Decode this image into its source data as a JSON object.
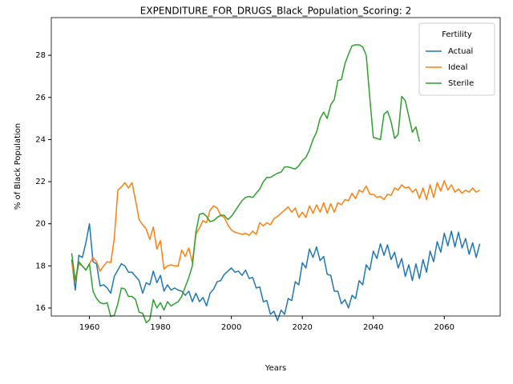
{
  "chart_data": {
    "type": "line",
    "title": "EXPENDITURE_FOR_DRUGS_Black_Population_Scoring: 2",
    "xlabel": "Years",
    "ylabel": "% of Black Population",
    "legend_title": "Fertility",
    "legend": "upper right",
    "x": [
      1955,
      1956,
      1957,
      1958,
      1959,
      1960,
      1961,
      1962,
      1963,
      1964,
      1965,
      1966,
      1967,
      1968,
      1969,
      1970,
      1971,
      1972,
      1973,
      1974,
      1975,
      1976,
      1977,
      1978,
      1979,
      1980,
      1981,
      1982,
      1983,
      1984,
      1985,
      1986,
      1987,
      1988,
      1989,
      1990,
      1991,
      1992,
      1993,
      1994,
      1995,
      1996,
      1997,
      1998,
      1999,
      2000,
      2001,
      2002,
      2003,
      2004,
      2005,
      2006,
      2007,
      2008,
      2009,
      2010,
      2011,
      2012,
      2013,
      2014,
      2015,
      2016,
      2017,
      2018,
      2019,
      2020,
      2021,
      2022,
      2023,
      2024,
      2025,
      2026,
      2027,
      2028,
      2029,
      2030,
      2031,
      2032,
      2033,
      2034,
      2035,
      2036,
      2037,
      2038,
      2039,
      2040,
      2041,
      2042,
      2043,
      2044,
      2045,
      2046,
      2047,
      2048,
      2049,
      2050,
      2051,
      2052,
      2053,
      2054,
      2055,
      2056,
      2057,
      2058,
      2059,
      2060,
      2061,
      2062,
      2063,
      2064,
      2065,
      2066,
      2067,
      2068,
      2069,
      2070
    ],
    "series": [
      {
        "name": "Actual",
        "color": "#1f77b4",
        "values": [
          18.3,
          16.85,
          18.5,
          18.4,
          19.1,
          20.0,
          18.2,
          18.1,
          17.05,
          17.1,
          16.95,
          16.7,
          17.5,
          17.8,
          18.1,
          18.0,
          17.7,
          17.7,
          17.5,
          17.3,
          16.7,
          17.2,
          17.1,
          17.75,
          17.2,
          17.55,
          16.8,
          17.1,
          16.85,
          16.95,
          16.85,
          16.8,
          16.6,
          16.8,
          16.3,
          16.7,
          16.3,
          16.5,
          16.1,
          16.7,
          16.9,
          17.25,
          17.3,
          17.6,
          17.75,
          17.9,
          17.7,
          17.75,
          17.55,
          17.8,
          17.4,
          17.45,
          16.95,
          17.0,
          16.3,
          16.35,
          15.7,
          15.85,
          15.4,
          15.9,
          15.7,
          16.45,
          16.35,
          17.25,
          17.1,
          18.15,
          17.9,
          18.8,
          18.4,
          18.9,
          18.25,
          18.45,
          17.6,
          17.55,
          16.8,
          16.8,
          16.2,
          16.4,
          16.0,
          16.6,
          16.45,
          17.3,
          17.1,
          18.05,
          17.8,
          18.7,
          18.35,
          19.05,
          18.5,
          19.0,
          18.3,
          18.65,
          17.9,
          18.35,
          17.5,
          18.05,
          17.3,
          18.1,
          17.4,
          18.3,
          17.7,
          18.7,
          18.2,
          19.15,
          18.65,
          19.55,
          18.95,
          19.65,
          18.9,
          19.6,
          18.85,
          19.3,
          18.55,
          19.1,
          18.4,
          19.05
        ]
      },
      {
        "name": "Ideal",
        "color": "#ff7f0e",
        "values": [
          18.2,
          17.2,
          18.1,
          18.0,
          17.8,
          18.1,
          18.4,
          18.2,
          17.75,
          18.0,
          18.2,
          18.15,
          19.3,
          21.6,
          21.75,
          21.95,
          21.7,
          21.95,
          21.1,
          20.2,
          19.95,
          19.75,
          19.25,
          19.85,
          18.8,
          19.2,
          17.85,
          18.0,
          18.05,
          18.0,
          18.0,
          18.75,
          18.45,
          18.85,
          18.15,
          19.5,
          19.8,
          20.15,
          20.05,
          20.65,
          20.85,
          20.75,
          20.4,
          20.3,
          19.95,
          19.7,
          19.6,
          19.55,
          19.5,
          19.55,
          19.45,
          19.65,
          19.5,
          20.05,
          19.9,
          20.05,
          19.95,
          20.25,
          20.35,
          20.5,
          20.65,
          20.8,
          20.55,
          20.75,
          20.3,
          20.55,
          20.3,
          20.85,
          20.5,
          20.9,
          20.55,
          21.0,
          20.5,
          20.95,
          20.55,
          21.0,
          20.9,
          21.15,
          21.1,
          21.45,
          21.2,
          21.6,
          21.5,
          21.8,
          21.4,
          21.4,
          21.25,
          21.3,
          21.15,
          21.4,
          21.35,
          21.7,
          21.6,
          21.85,
          21.7,
          21.75,
          21.5,
          21.65,
          21.2,
          21.7,
          21.15,
          21.85,
          21.25,
          21.95,
          21.55,
          22.05,
          21.6,
          21.85,
          21.5,
          21.65,
          21.45,
          21.6,
          21.5,
          21.7,
          21.5,
          21.6
        ]
      },
      {
        "name": "Sterile",
        "color": "#2ca02c",
        "values": [
          18.6,
          17.3,
          18.2,
          18.0,
          17.8,
          18.1,
          16.8,
          16.45,
          16.25,
          16.2,
          16.25,
          15.6,
          15.65,
          16.2,
          16.95,
          16.9,
          16.55,
          16.55,
          16.4,
          15.8,
          15.75,
          15.3,
          15.45,
          16.4,
          16.0,
          16.25,
          15.9,
          16.3,
          16.1,
          16.2,
          16.3,
          16.55,
          17.0,
          17.45,
          18.0,
          19.6,
          20.45,
          20.5,
          20.35,
          20.1,
          20.15,
          20.3,
          20.4,
          20.4,
          20.2,
          20.35,
          20.6,
          20.85,
          21.1,
          21.25,
          21.3,
          21.25,
          21.45,
          21.65,
          22.0,
          22.2,
          22.2,
          22.3,
          22.4,
          22.45,
          22.7,
          22.7,
          22.65,
          22.6,
          22.75,
          23.0,
          23.15,
          23.5,
          24.0,
          24.35,
          25.0,
          25.3,
          25.0,
          25.65,
          25.9,
          26.8,
          26.85,
          27.6,
          28.05,
          28.45,
          28.5,
          28.5,
          28.4,
          28.0,
          26.0,
          24.1,
          24.05,
          24.0,
          25.2,
          25.35,
          24.85,
          24.05,
          24.25,
          26.05,
          25.85,
          25.1,
          24.35,
          24.6,
          23.9,
          null,
          null,
          null,
          null,
          null,
          null,
          null,
          null,
          null,
          null,
          null,
          null,
          null,
          null,
          null,
          null,
          null
        ]
      }
    ],
    "xlim": [
      1949.25,
      2075.75
    ],
    "xticks": [
      1960,
      1980,
      2000,
      2020,
      2040,
      2060
    ],
    "ylim": [
      15.62,
      29.79
    ],
    "yticks": [
      16,
      18,
      20,
      22,
      24,
      26,
      28
    ],
    "grid": false
  }
}
